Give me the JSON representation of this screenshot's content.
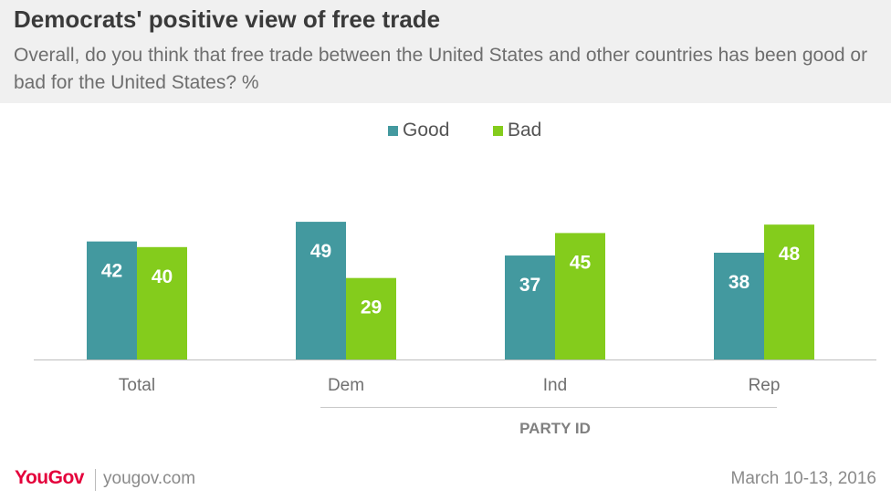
{
  "header": {
    "title": "Democrats' positive view of free trade",
    "subtitle": "Overall, do you think that free trade between the United States and other countries has been good or bad for the United States? %"
  },
  "colors": {
    "good": "#43999f",
    "bad": "#84cc1c",
    "header_bg": "#f0f0f0",
    "brand": "#e4003b"
  },
  "chart_data": {
    "type": "bar",
    "title": "Democrats' positive view of free trade",
    "categories": [
      "Total",
      "Dem",
      "Ind",
      "Rep"
    ],
    "series": [
      {
        "name": "Good",
        "values": [
          42,
          49,
          37,
          38
        ]
      },
      {
        "name": "Bad",
        "values": [
          40,
          29,
          45,
          48
        ]
      }
    ],
    "group_label": "PARTY ID",
    "legend_position": "top",
    "ylim": [
      0,
      50
    ],
    "grid": false
  },
  "footer": {
    "logo": "YouGov",
    "site": "yougov.com",
    "date": "March 10-13, 2016"
  }
}
